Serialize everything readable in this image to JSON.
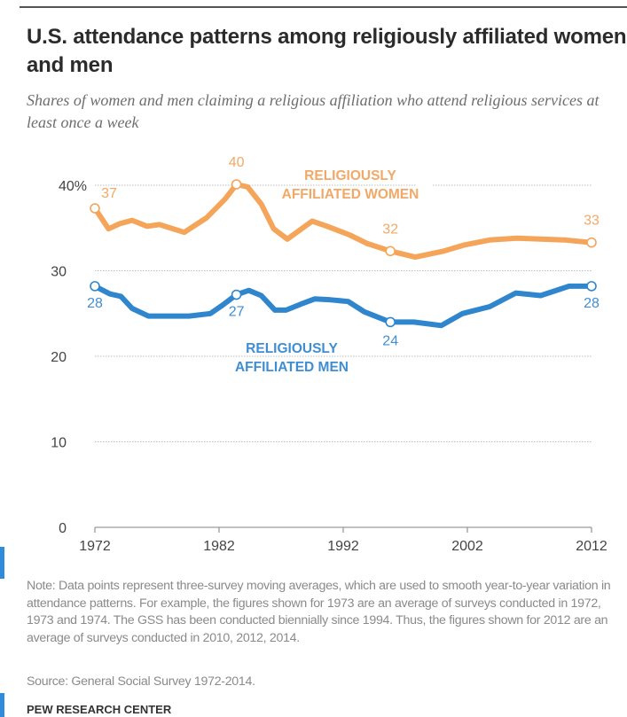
{
  "header": {
    "title": "U.S. attendance patterns among religiously affiliated women and men",
    "subtitle": "Shares of women and men claiming a religious affiliation who attend religious services at least once a week"
  },
  "footer": {
    "note": "Note: Data points represent three-survey moving averages, which are used to smooth year-to-year variation in attendance patterns. For example, the figures shown for 1973 are an average of surveys conducted in 1972, 1973 and 1974. The GSS has been conducted biennially since 1994. Thus, the figures shown for 2012 are an average of surveys conducted in 2010, 2012,  2014.",
    "source": "Source:  General Social Survey 1972-2014.",
    "brand": "PEW RESEARCH CENTER"
  },
  "colors": {
    "women": "#f4a55a",
    "men": "#2f86cc",
    "women_label": "#f2a866",
    "men_label": "#3f8ed3",
    "grid": "#bdbdbd",
    "axis": "#9a9a9a",
    "text": "#444444"
  },
  "chart_data": {
    "type": "line",
    "title": "U.S. attendance patterns among religiously affiliated women and men",
    "xlabel": "",
    "ylabel": "",
    "xlim": [
      1972,
      2012
    ],
    "ylim": [
      0,
      40
    ],
    "x_ticks": [
      1972,
      1982,
      1992,
      2002,
      2012
    ],
    "x_tick_labels": [
      "1972",
      "1982",
      "1992",
      "2002",
      "2012"
    ],
    "y_ticks": [
      0,
      10,
      20,
      30,
      40
    ],
    "y_tick_labels": [
      "0",
      "10",
      "20",
      "30",
      "40%"
    ],
    "grid": true,
    "series": [
      {
        "name": "RELIGIOUSLY AFFILIATED WOMEN",
        "label_lines": [
          "RELIGIOUSLY",
          "AFFILIATED WOMEN"
        ],
        "x": [
          1972,
          1973.1,
          1974,
          1975,
          1976.2,
          1977.2,
          1979.2,
          1981,
          1982.5,
          1983.4,
          1984.3,
          1985.4,
          1986.4,
          1987.5,
          1989.5,
          1990.7,
          1992.5,
          1993.9,
          1995.8,
          1997.8,
          2000.1,
          2001.7,
          2003.8,
          2006,
          2009.9,
          2012
        ],
        "values": [
          37.3,
          34.9,
          35.5,
          35.9,
          35.2,
          35.4,
          34.5,
          36.2,
          38.4,
          40.1,
          39.8,
          37.8,
          34.9,
          33.7,
          35.8,
          35.2,
          34.2,
          33.2,
          32.3,
          31.6,
          32.3,
          33.0,
          33.6,
          33.8,
          33.6,
          33.3
        ],
        "annotations": [
          {
            "x": 1972,
            "value": 37,
            "label": "37"
          },
          {
            "x": 1983.4,
            "value": 40,
            "label": "40"
          },
          {
            "x": 1995.8,
            "value": 32,
            "label": "32"
          },
          {
            "x": 2012,
            "value": 33,
            "label": "33"
          }
        ]
      },
      {
        "name": "RELIGIOUSLY AFFILIATED MEN",
        "label_lines": [
          "RELIGIOUSLY",
          "AFFILIATED MEN"
        ],
        "x": [
          1972,
          1973.2,
          1974.1,
          1975,
          1976.3,
          1979.6,
          1981.3,
          1982.3,
          1983.4,
          1984.4,
          1985.4,
          1986.5,
          1987.4,
          1988.6,
          1989.7,
          1991,
          1992.4,
          1993.7,
          1995.8,
          1997.7,
          1999.9,
          2001.6,
          2003.8,
          2005.9,
          2007.9,
          2010.2,
          2012
        ],
        "values": [
          28.2,
          27.3,
          27.0,
          25.6,
          24.7,
          24.7,
          25.0,
          26.0,
          27.2,
          27.7,
          27.1,
          25.4,
          25.4,
          26.1,
          26.7,
          26.6,
          26.4,
          25.2,
          24.0,
          24.0,
          23.6,
          25.0,
          25.8,
          27.4,
          27.1,
          28.2,
          28.2
        ],
        "annotations": [
          {
            "x": 1972,
            "value": 28,
            "label": "28"
          },
          {
            "x": 1983.4,
            "value": 27,
            "label": "27"
          },
          {
            "x": 1995.8,
            "value": 24,
            "label": "24"
          },
          {
            "x": 2012,
            "value": 28,
            "label": "28"
          }
        ]
      }
    ]
  }
}
